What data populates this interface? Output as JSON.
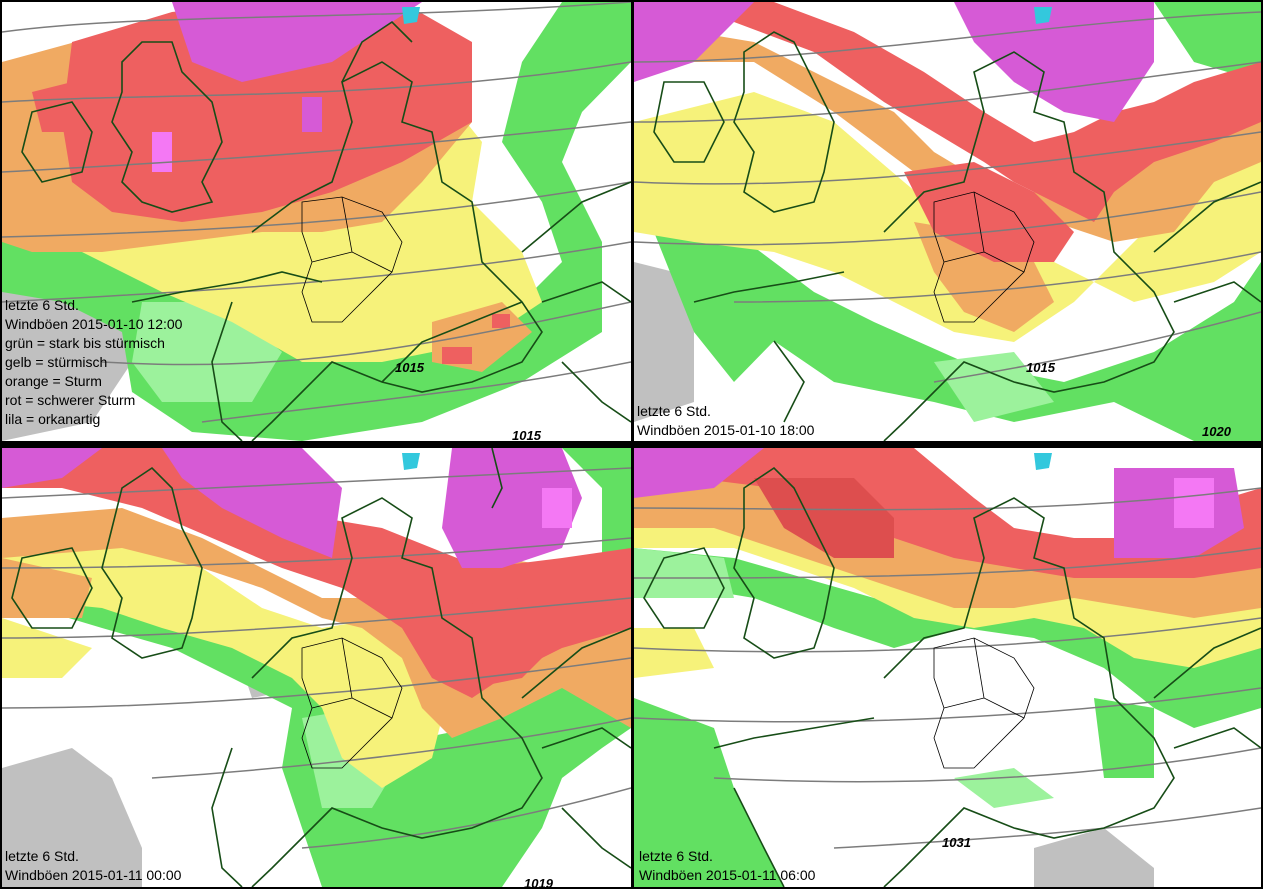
{
  "colors": {
    "gruen": "#62e062",
    "hellgruen": "#9cf29c",
    "gelb": "#f6f27a",
    "orange": "#f0aa62",
    "rot": "#ee6060",
    "dunkelrot": "#dd4e4e",
    "lila": "#d65ad6",
    "pink": "#f478f4",
    "grau": "#c0c0c0",
    "isobar": "#7c7c7c",
    "coast": "#174d17"
  },
  "panels": [
    {
      "id": "p1",
      "caption": [
        "letzte 6 Std.",
        "Windböen 2015-01-10 12:00",
        "grün = stark bis stürmisch",
        "gelb = stürmisch",
        "orange = Sturm",
        "rot = schwerer Sturm",
        "lila = orkanartig"
      ],
      "isobar_label": "1015",
      "isobar_label_2": "1015"
    },
    {
      "id": "p2",
      "caption": [
        "letzte 6 Std.",
        "Windböen 2015-01-10 18:00"
      ],
      "isobar_label": "1015",
      "isobar_label_2": "1020"
    },
    {
      "id": "p3",
      "caption": [
        "letzte 6 Std.",
        "Windböen 2015-01-11 00:00"
      ],
      "isobar_label": "1019"
    },
    {
      "id": "p4",
      "caption": [
        "letzte 6 Std.",
        "Windböen 2015-01-11 06:00"
      ],
      "isobar_label": "1031"
    }
  ]
}
